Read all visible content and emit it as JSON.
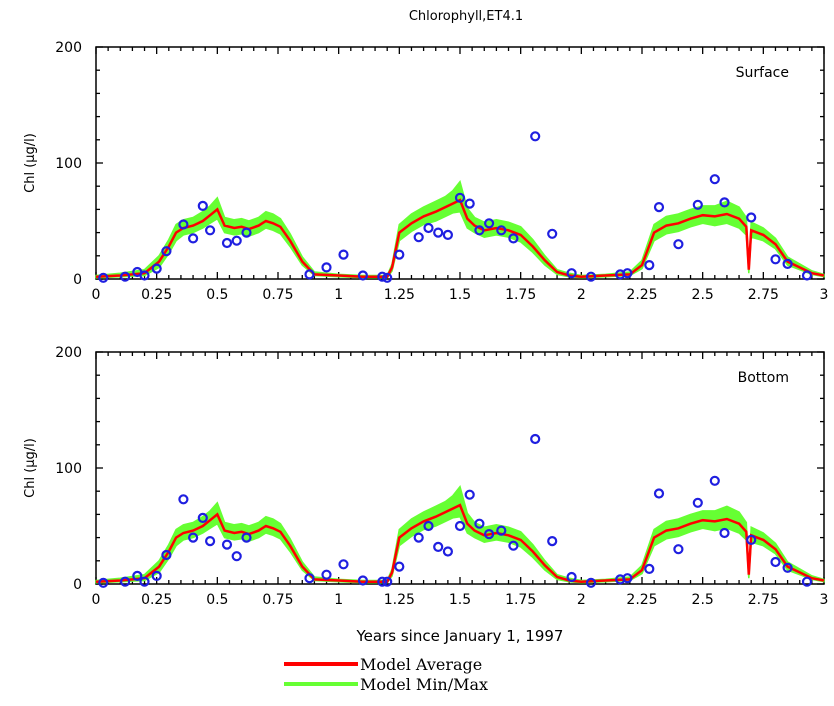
{
  "title": "Chlorophyll,ET4.1",
  "colors": {
    "average": "#ff0000",
    "minmax": "#66ff33",
    "observed": "#1f1fe0"
  },
  "legend": {
    "average_label": "Model Average",
    "minmax_label": "Model Min/Max"
  },
  "chart_data": [
    {
      "type": "line",
      "panel_label": "Surface",
      "ylabel": "Chl (μg/l)",
      "xlabel": "",
      "xlim": [
        0,
        3
      ],
      "ylim": [
        0,
        200
      ],
      "xticks": [
        "0",
        "0.25",
        "0.5",
        "0.75",
        "1",
        "1.25",
        "1.5",
        "1.75",
        "2",
        "2.25",
        "2.5",
        "2.75",
        "3"
      ],
      "yticks": [
        "0",
        "100",
        "200"
      ],
      "series": [
        {
          "name": "Model Average",
          "kind": "line",
          "x": [
            0,
            0.1,
            0.2,
            0.26,
            0.3,
            0.33,
            0.36,
            0.4,
            0.44,
            0.47,
            0.5,
            0.53,
            0.57,
            0.6,
            0.63,
            0.67,
            0.7,
            0.73,
            0.76,
            0.8,
            0.85,
            0.9,
            1.0,
            1.1,
            1.2,
            1.22,
            1.25,
            1.3,
            1.35,
            1.4,
            1.44,
            1.47,
            1.5,
            1.53,
            1.56,
            1.6,
            1.65,
            1.7,
            1.75,
            1.8,
            1.85,
            1.9,
            1.95,
            2.0,
            2.1,
            2.2,
            2.25,
            2.3,
            2.35,
            2.4,
            2.45,
            2.5,
            2.55,
            2.6,
            2.65,
            2.68,
            2.69,
            2.7,
            2.75,
            2.8,
            2.85,
            2.9,
            2.95,
            3.0
          ],
          "y": [
            2,
            3,
            5,
            15,
            28,
            40,
            44,
            46,
            50,
            55,
            60,
            46,
            44,
            45,
            43,
            46,
            50,
            48,
            45,
            33,
            15,
            4,
            3,
            2,
            2,
            10,
            40,
            48,
            54,
            58,
            62,
            65,
            68,
            52,
            46,
            42,
            44,
            42,
            38,
            28,
            16,
            6,
            3,
            2,
            3,
            4,
            12,
            40,
            46,
            48,
            52,
            55,
            54,
            56,
            52,
            45,
            8,
            42,
            38,
            30,
            15,
            10,
            5,
            3
          ]
        },
        {
          "name": "Model Min/Max",
          "kind": "band",
          "x": [
            0,
            0.1,
            0.2,
            0.26,
            0.3,
            0.33,
            0.36,
            0.4,
            0.44,
            0.47,
            0.5,
            0.53,
            0.57,
            0.6,
            0.63,
            0.67,
            0.7,
            0.73,
            0.76,
            0.8,
            0.85,
            0.9,
            1.0,
            1.1,
            1.2,
            1.22,
            1.25,
            1.3,
            1.35,
            1.4,
            1.44,
            1.47,
            1.5,
            1.53,
            1.56,
            1.6,
            1.65,
            1.7,
            1.75,
            1.8,
            1.85,
            1.9,
            1.95,
            2.0,
            2.1,
            2.2,
            2.25,
            2.3,
            2.35,
            2.4,
            2.45,
            2.5,
            2.55,
            2.6,
            2.65,
            2.68,
            2.69,
            2.7,
            2.75,
            2.8,
            2.85,
            2.9,
            2.95,
            3.0
          ],
          "low": [
            1,
            2,
            3,
            10,
            22,
            33,
            38,
            40,
            44,
            48,
            52,
            40,
            38,
            39,
            37,
            40,
            44,
            42,
            39,
            28,
            12,
            3,
            2,
            1,
            1,
            7,
            33,
            41,
            47,
            50,
            54,
            57,
            58,
            44,
            40,
            36,
            38,
            36,
            32,
            23,
            12,
            4,
            2,
            1,
            2,
            3,
            9,
            33,
            39,
            41,
            45,
            48,
            46,
            48,
            44,
            38,
            5,
            36,
            33,
            26,
            12,
            8,
            4,
            2
          ],
          "high": [
            3,
            5,
            8,
            20,
            34,
            47,
            51,
            53,
            58,
            63,
            70,
            53,
            51,
            52,
            50,
            53,
            58,
            56,
            52,
            39,
            19,
            6,
            4,
            3,
            3,
            13,
            47,
            56,
            62,
            67,
            71,
            76,
            84,
            61,
            53,
            49,
            51,
            49,
            45,
            34,
            20,
            8,
            5,
            3,
            4,
            6,
            16,
            47,
            54,
            56,
            60,
            63,
            63,
            67,
            62,
            53,
            11,
            49,
            44,
            35,
            19,
            13,
            7,
            4
          ]
        },
        {
          "name": "Observed",
          "kind": "scatter",
          "x": [
            0.03,
            0.12,
            0.17,
            0.2,
            0.25,
            0.29,
            0.36,
            0.4,
            0.44,
            0.47,
            0.54,
            0.58,
            0.62,
            0.88,
            0.95,
            1.02,
            1.1,
            1.18,
            1.2,
            1.25,
            1.33,
            1.37,
            1.41,
            1.45,
            1.5,
            1.54,
            1.58,
            1.62,
            1.67,
            1.72,
            1.81,
            1.88,
            1.96,
            2.04,
            2.16,
            2.19,
            2.28,
            2.32,
            2.4,
            2.48,
            2.55,
            2.59,
            2.7,
            2.8,
            2.85,
            2.93
          ],
          "y": [
            1,
            2,
            6,
            3,
            9,
            24,
            47,
            35,
            63,
            42,
            31,
            33,
            40,
            4,
            10,
            21,
            3,
            2,
            1,
            21,
            36,
            44,
            40,
            38,
            70,
            65,
            42,
            48,
            42,
            35,
            123,
            39,
            5,
            2,
            4,
            5,
            12,
            62,
            30,
            64,
            86,
            66,
            53,
            17,
            13,
            3
          ]
        }
      ]
    },
    {
      "type": "line",
      "panel_label": "Bottom",
      "ylabel": "Chl (μg/l)",
      "xlabel": "Years since January 1, 1997",
      "xlim": [
        0,
        3
      ],
      "ylim": [
        0,
        200
      ],
      "xticks": [
        "0",
        "0.25",
        "0.5",
        "0.75",
        "1",
        "1.25",
        "1.5",
        "1.75",
        "2",
        "2.25",
        "2.5",
        "2.75",
        "3"
      ],
      "yticks": [
        "0",
        "100",
        "200"
      ],
      "series": [
        {
          "name": "Model Average",
          "kind": "line",
          "x": [
            0,
            0.1,
            0.2,
            0.26,
            0.3,
            0.33,
            0.36,
            0.4,
            0.44,
            0.47,
            0.5,
            0.53,
            0.57,
            0.6,
            0.63,
            0.67,
            0.7,
            0.73,
            0.76,
            0.8,
            0.85,
            0.9,
            1.0,
            1.1,
            1.2,
            1.22,
            1.25,
            1.3,
            1.35,
            1.4,
            1.44,
            1.47,
            1.5,
            1.53,
            1.56,
            1.6,
            1.65,
            1.7,
            1.75,
            1.8,
            1.85,
            1.9,
            1.95,
            2.0,
            2.1,
            2.2,
            2.25,
            2.3,
            2.35,
            2.4,
            2.45,
            2.5,
            2.55,
            2.6,
            2.65,
            2.68,
            2.69,
            2.7,
            2.75,
            2.8,
            2.85,
            2.9,
            2.95,
            3.0
          ],
          "y": [
            2,
            3,
            5,
            15,
            28,
            40,
            44,
            46,
            50,
            55,
            60,
            46,
            44,
            45,
            43,
            46,
            50,
            48,
            45,
            33,
            15,
            4,
            3,
            2,
            2,
            10,
            40,
            48,
            54,
            58,
            62,
            65,
            68,
            52,
            46,
            42,
            44,
            42,
            38,
            28,
            16,
            6,
            3,
            2,
            3,
            4,
            12,
            40,
            46,
            48,
            52,
            55,
            54,
            56,
            52,
            45,
            8,
            42,
            38,
            30,
            15,
            10,
            5,
            3
          ]
        },
        {
          "name": "Model Min/Max",
          "kind": "band",
          "x": [
            0,
            0.1,
            0.2,
            0.26,
            0.3,
            0.33,
            0.36,
            0.4,
            0.44,
            0.47,
            0.5,
            0.53,
            0.57,
            0.6,
            0.63,
            0.67,
            0.7,
            0.73,
            0.76,
            0.8,
            0.85,
            0.9,
            1.0,
            1.1,
            1.2,
            1.22,
            1.25,
            1.3,
            1.35,
            1.4,
            1.44,
            1.47,
            1.5,
            1.53,
            1.56,
            1.6,
            1.65,
            1.7,
            1.75,
            1.8,
            1.85,
            1.9,
            1.95,
            2.0,
            2.1,
            2.2,
            2.25,
            2.3,
            2.35,
            2.4,
            2.45,
            2.5,
            2.55,
            2.6,
            2.65,
            2.68,
            2.69,
            2.7,
            2.75,
            2.8,
            2.85,
            2.9,
            2.95,
            3.0
          ],
          "low": [
            1,
            2,
            3,
            10,
            22,
            33,
            38,
            40,
            44,
            48,
            52,
            40,
            38,
            39,
            37,
            40,
            44,
            42,
            39,
            28,
            12,
            3,
            2,
            1,
            1,
            7,
            33,
            41,
            47,
            50,
            54,
            57,
            58,
            44,
            40,
            36,
            38,
            36,
            32,
            23,
            12,
            4,
            2,
            1,
            2,
            3,
            9,
            33,
            39,
            41,
            45,
            48,
            46,
            48,
            44,
            38,
            5,
            36,
            33,
            26,
            12,
            8,
            4,
            2
          ],
          "high": [
            3,
            5,
            8,
            20,
            34,
            47,
            51,
            53,
            58,
            63,
            70,
            53,
            51,
            52,
            50,
            53,
            58,
            56,
            52,
            39,
            19,
            6,
            4,
            3,
            3,
            13,
            47,
            56,
            62,
            67,
            71,
            76,
            84,
            61,
            53,
            49,
            51,
            49,
            45,
            34,
            20,
            8,
            5,
            3,
            4,
            6,
            16,
            47,
            54,
            56,
            60,
            63,
            63,
            67,
            62,
            53,
            11,
            49,
            44,
            35,
            19,
            13,
            7,
            4
          ]
        },
        {
          "name": "Observed",
          "kind": "scatter",
          "x": [
            0.03,
            0.12,
            0.17,
            0.2,
            0.25,
            0.29,
            0.36,
            0.4,
            0.44,
            0.47,
            0.54,
            0.58,
            0.62,
            0.88,
            0.95,
            1.02,
            1.1,
            1.18,
            1.2,
            1.25,
            1.33,
            1.37,
            1.41,
            1.45,
            1.5,
            1.54,
            1.58,
            1.62,
            1.67,
            1.72,
            1.81,
            1.88,
            1.96,
            2.04,
            2.16,
            2.19,
            2.28,
            2.32,
            2.4,
            2.48,
            2.55,
            2.59,
            2.7,
            2.8,
            2.85,
            2.93
          ],
          "y": [
            1,
            2,
            7,
            2,
            7,
            25,
            73,
            40,
            57,
            37,
            34,
            24,
            40,
            5,
            8,
            17,
            3,
            2,
            2,
            15,
            40,
            50,
            32,
            28,
            50,
            77,
            52,
            43,
            46,
            33,
            125,
            37,
            6,
            1,
            4,
            5,
            13,
            78,
            30,
            70,
            89,
            44,
            38,
            19,
            14,
            2
          ]
        }
      ]
    }
  ]
}
